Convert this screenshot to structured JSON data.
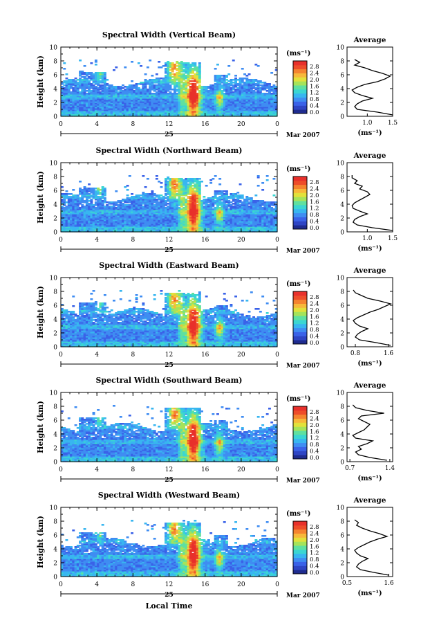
{
  "figure": {
    "x_axis_label": "Local Time",
    "date_label": "Mar 2007",
    "day_label": "25",
    "average_title": "Average",
    "unit_label": "(ms⁻¹)",
    "colors": [
      "#1f2c8f",
      "#2e45c4",
      "#3a62e8",
      "#3f8df2",
      "#38b6f0",
      "#3bd6d2",
      "#5fe0a0",
      "#a6e35a",
      "#e2e13b",
      "#f7b83a",
      "#f5842f",
      "#ee4d2a",
      "#e8302b"
    ]
  },
  "chart_data": [
    {
      "type": "heatmap",
      "title": "Spectral Width (Vertical Beam)",
      "ylabel": "Height (km)",
      "xlim": [
        0,
        24
      ],
      "ylim": [
        0,
        10
      ],
      "x_ticks": [
        "0",
        "4",
        "8",
        "12",
        "16",
        "20",
        "0"
      ],
      "y_ticks": [
        "0",
        "2",
        "4",
        "6",
        "8",
        "10"
      ],
      "colorbar": {
        "label": "(ms⁻¹)",
        "ticks": [
          "2.8",
          "2.4",
          "2.0",
          "1.6",
          "1.2",
          "0.8",
          "0.4",
          "0.0"
        ],
        "range": [
          0,
          2.8
        ]
      },
      "profile": {
        "title": "Average",
        "xlabel": "(ms⁻¹)",
        "xlim": [
          0.6,
          1.5
        ],
        "x_ticks": [
          "1.0",
          "1.5"
        ],
        "heights": [
          0.2,
          0.6,
          1.0,
          1.4,
          1.8,
          2.2,
          2.6,
          3.0,
          3.4,
          3.8,
          4.2,
          4.6,
          5.0,
          5.4,
          5.8,
          6.2,
          6.6,
          7.0,
          7.4,
          7.8,
          8.2
        ],
        "values": [
          1.5,
          1.2,
          0.8,
          0.75,
          0.8,
          0.9,
          1.1,
          0.9,
          0.75,
          0.7,
          0.8,
          0.95,
          1.2,
          1.35,
          1.45,
          1.3,
          1.1,
          0.95,
          0.75,
          0.85,
          0.75
        ]
      }
    },
    {
      "type": "heatmap",
      "title": "Spectral Width (Northward Beam)",
      "ylabel": "Height (km)",
      "xlim": [
        0,
        24
      ],
      "ylim": [
        0,
        10
      ],
      "x_ticks": [
        "0",
        "4",
        "8",
        "12",
        "16",
        "20",
        "0"
      ],
      "y_ticks": [
        "0",
        "2",
        "4",
        "6",
        "8",
        "10"
      ],
      "colorbar": {
        "label": "(ms⁻¹)",
        "ticks": [
          "2.8",
          "2.4",
          "2.0",
          "1.6",
          "1.2",
          "0.8",
          "0.4",
          "0.0"
        ],
        "range": [
          0,
          2.8
        ]
      },
      "profile": {
        "title": "Average",
        "xlabel": "(ms⁻¹)",
        "xlim": [
          0.6,
          1.5
        ],
        "x_ticks": [
          "1.0",
          "1.5"
        ],
        "heights": [
          0.2,
          0.6,
          1.0,
          1.4,
          1.8,
          2.2,
          2.6,
          3.0,
          3.4,
          3.8,
          4.2,
          4.6,
          5.0,
          5.4,
          5.8,
          6.2,
          6.6,
          7.0,
          7.4,
          7.8,
          8.2
        ],
        "values": [
          1.5,
          1.1,
          0.8,
          0.72,
          0.75,
          0.85,
          1.0,
          0.85,
          0.72,
          0.7,
          0.75,
          0.85,
          0.95,
          1.05,
          1.0,
          0.85,
          0.9,
          0.75,
          0.8,
          0.7,
          0.7
        ]
      }
    },
    {
      "type": "heatmap",
      "title": "Spectral Width (Eastward Beam)",
      "ylabel": "Height (km)",
      "xlim": [
        0,
        24
      ],
      "ylim": [
        0,
        10
      ],
      "x_ticks": [
        "0",
        "4",
        "8",
        "12",
        "16",
        "20",
        "0"
      ],
      "y_ticks": [
        "0",
        "2",
        "4",
        "6",
        "8",
        "10"
      ],
      "colorbar": {
        "label": "(ms⁻¹)",
        "ticks": [
          "2.8",
          "2.4",
          "2.0",
          "1.6",
          "1.2",
          "0.8",
          "0.4",
          "0.0"
        ],
        "range": [
          0,
          2.8
        ]
      },
      "profile": {
        "title": "Average",
        "xlabel": "(ms⁻¹)",
        "xlim": [
          0.6,
          1.7
        ],
        "x_ticks": [
          "0.8",
          "1.6"
        ],
        "heights": [
          0.2,
          0.6,
          1.0,
          1.4,
          1.8,
          2.2,
          2.6,
          3.0,
          3.4,
          3.8,
          4.2,
          4.6,
          5.0,
          5.4,
          5.8,
          6.2,
          6.6,
          7.0,
          7.4,
          7.8,
          8.2
        ],
        "values": [
          1.65,
          1.3,
          0.9,
          0.8,
          0.85,
          0.95,
          1.1,
          0.9,
          0.8,
          0.75,
          0.85,
          1.0,
          1.15,
          1.35,
          1.5,
          1.65,
          1.4,
          1.1,
          0.95,
          0.8,
          0.75
        ]
      }
    },
    {
      "type": "heatmap",
      "title": "Spectral Width (Southward Beam)",
      "ylabel": "Height (km)",
      "xlim": [
        0,
        24
      ],
      "ylim": [
        0,
        10
      ],
      "x_ticks": [
        "0",
        "4",
        "8",
        "12",
        "16",
        "20",
        "0"
      ],
      "y_ticks": [
        "0",
        "2",
        "4",
        "6",
        "8",
        "10"
      ],
      "colorbar": {
        "label": "(ms⁻¹)",
        "ticks": [
          "2.8",
          "2.4",
          "2.0",
          "1.6",
          "1.2",
          "0.8",
          "0.4",
          "0.0"
        ],
        "range": [
          0,
          2.8
        ]
      },
      "profile": {
        "title": "Average",
        "xlabel": "(ms⁻¹)",
        "xlim": [
          0.65,
          1.45
        ],
        "x_ticks": [
          "0.7",
          "1.4"
        ],
        "heights": [
          0.2,
          0.6,
          1.0,
          1.4,
          1.8,
          2.2,
          2.6,
          3.0,
          3.4,
          3.8,
          4.2,
          4.6,
          5.0,
          5.4,
          5.8,
          6.2,
          6.6,
          7.0,
          7.4,
          7.8,
          8.2
        ],
        "values": [
          1.35,
          1.05,
          0.85,
          0.8,
          0.9,
          0.85,
          1.0,
          1.1,
          0.8,
          0.75,
          0.85,
          0.95,
          1.0,
          1.05,
          0.95,
          0.85,
          0.9,
          1.3,
          1.0,
          0.8,
          0.75
        ]
      }
    },
    {
      "type": "heatmap",
      "title": "Spectral Width (Westward Beam)",
      "ylabel": "Height (km)",
      "xlim": [
        0,
        24
      ],
      "ylim": [
        0,
        10
      ],
      "x_ticks": [
        "0",
        "4",
        "8",
        "12",
        "16",
        "20",
        "0"
      ],
      "y_ticks": [
        "0",
        "2",
        "4",
        "6",
        "8",
        "10"
      ],
      "colorbar": {
        "label": "(ms⁻¹)",
        "ticks": [
          "2.8",
          "2.4",
          "2.0",
          "1.6",
          "1.2",
          "0.8",
          "0.4",
          "0.0"
        ],
        "range": [
          0,
          2.8
        ]
      },
      "profile": {
        "title": "Average",
        "xlabel": "(ms⁻¹)",
        "xlim": [
          0.5,
          1.7
        ],
        "x_ticks": [
          "0.5",
          "1.6"
        ],
        "heights": [
          0.2,
          0.6,
          1.0,
          1.4,
          1.8,
          2.2,
          2.6,
          3.0,
          3.4,
          3.8,
          4.2,
          4.6,
          5.0,
          5.4,
          5.8,
          6.2,
          6.6,
          7.0,
          7.4,
          7.8,
          8.2
        ],
        "values": [
          1.6,
          1.2,
          0.85,
          0.75,
          0.8,
          0.9,
          1.05,
          0.85,
          0.75,
          0.7,
          0.8,
          0.95,
          1.1,
          1.3,
          1.55,
          1.35,
          1.1,
          0.9,
          0.75,
          0.8,
          0.7
        ]
      }
    }
  ]
}
